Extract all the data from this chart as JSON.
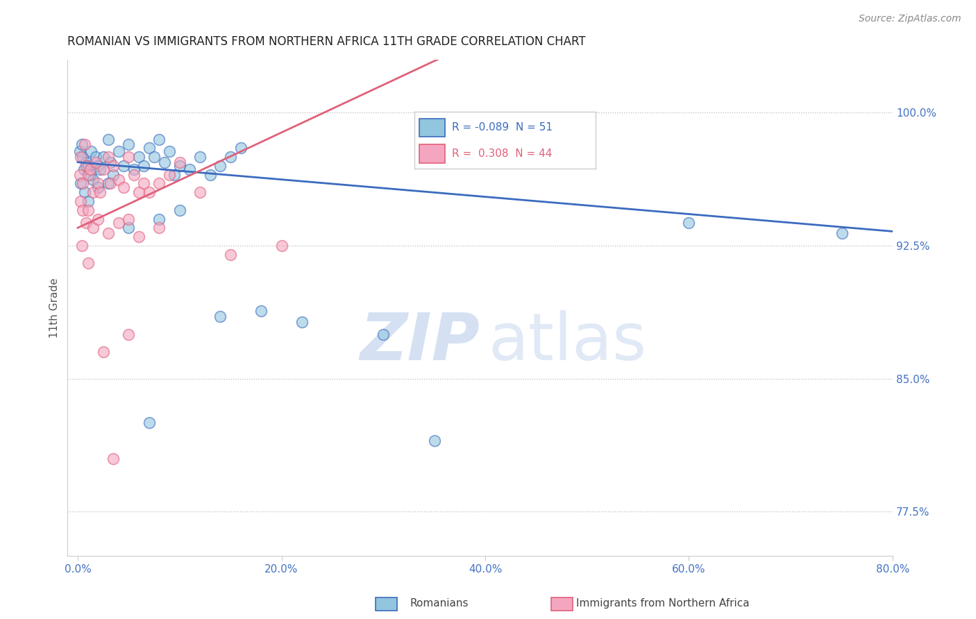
{
  "title": "ROMANIAN VS IMMIGRANTS FROM NORTHERN AFRICA 11TH GRADE CORRELATION CHART",
  "source": "Source: ZipAtlas.com",
  "xlabel_blue": "Romanians",
  "xlabel_pink": "Immigrants from Northern Africa",
  "ylabel": "11th Grade",
  "xlim": [
    -1.0,
    80.0
  ],
  "ylim": [
    75.0,
    103.0
  ],
  "yticks": [
    77.5,
    85.0,
    92.5,
    100.0
  ],
  "xticks": [
    0.0,
    20.0,
    40.0,
    60.0,
    80.0
  ],
  "blue_r": "-0.089",
  "blue_n": "51",
  "pink_r": "0.308",
  "pink_n": "44",
  "blue_color": "#92c5de",
  "pink_color": "#f4a6c0",
  "blue_line_color": "#3b6bbf",
  "pink_line_color": "#e0607a",
  "axis_label_color": "#4472c4",
  "tick_color": "#4472c4",
  "blue_points": [
    [
      0.2,
      97.8
    ],
    [
      0.4,
      98.2
    ],
    [
      0.5,
      97.5
    ],
    [
      0.6,
      96.8
    ],
    [
      0.8,
      97.2
    ],
    [
      1.0,
      97.0
    ],
    [
      1.2,
      96.5
    ],
    [
      1.3,
      97.8
    ],
    [
      1.5,
      96.2
    ],
    [
      1.8,
      97.5
    ],
    [
      2.0,
      97.0
    ],
    [
      2.2,
      96.8
    ],
    [
      2.5,
      97.5
    ],
    [
      3.0,
      98.5
    ],
    [
      3.2,
      97.2
    ],
    [
      3.5,
      96.5
    ],
    [
      4.0,
      97.8
    ],
    [
      4.5,
      97.0
    ],
    [
      5.0,
      98.2
    ],
    [
      5.5,
      96.8
    ],
    [
      6.0,
      97.5
    ],
    [
      6.5,
      97.0
    ],
    [
      7.0,
      98.0
    ],
    [
      7.5,
      97.5
    ],
    [
      8.0,
      98.5
    ],
    [
      8.5,
      97.2
    ],
    [
      9.0,
      97.8
    ],
    [
      9.5,
      96.5
    ],
    [
      10.0,
      97.0
    ],
    [
      11.0,
      96.8
    ],
    [
      12.0,
      97.5
    ],
    [
      13.0,
      96.5
    ],
    [
      14.0,
      97.0
    ],
    [
      15.0,
      97.5
    ],
    [
      16.0,
      98.0
    ],
    [
      0.3,
      96.0
    ],
    [
      0.7,
      95.5
    ],
    [
      1.0,
      95.0
    ],
    [
      2.0,
      95.8
    ],
    [
      3.0,
      96.0
    ],
    [
      5.0,
      93.5
    ],
    [
      8.0,
      94.0
    ],
    [
      10.0,
      94.5
    ],
    [
      14.0,
      88.5
    ],
    [
      18.0,
      88.8
    ],
    [
      22.0,
      88.2
    ],
    [
      30.0,
      87.5
    ],
    [
      7.0,
      82.5
    ],
    [
      35.0,
      81.5
    ],
    [
      60.0,
      93.8
    ],
    [
      75.0,
      93.2
    ]
  ],
  "pink_points": [
    [
      0.2,
      96.5
    ],
    [
      0.3,
      97.5
    ],
    [
      0.5,
      96.0
    ],
    [
      0.7,
      98.2
    ],
    [
      0.8,
      97.0
    ],
    [
      1.0,
      96.5
    ],
    [
      1.2,
      96.8
    ],
    [
      1.5,
      95.5
    ],
    [
      1.8,
      97.2
    ],
    [
      2.0,
      96.0
    ],
    [
      2.2,
      95.5
    ],
    [
      2.5,
      96.8
    ],
    [
      3.0,
      97.5
    ],
    [
      3.2,
      96.0
    ],
    [
      3.5,
      97.0
    ],
    [
      4.0,
      96.2
    ],
    [
      4.5,
      95.8
    ],
    [
      5.0,
      97.5
    ],
    [
      5.5,
      96.5
    ],
    [
      6.0,
      95.5
    ],
    [
      6.5,
      96.0
    ],
    [
      7.0,
      95.5
    ],
    [
      8.0,
      96.0
    ],
    [
      9.0,
      96.5
    ],
    [
      10.0,
      97.2
    ],
    [
      0.3,
      95.0
    ],
    [
      0.5,
      94.5
    ],
    [
      0.8,
      93.8
    ],
    [
      1.0,
      94.5
    ],
    [
      1.5,
      93.5
    ],
    [
      2.0,
      94.0
    ],
    [
      3.0,
      93.2
    ],
    [
      4.0,
      93.8
    ],
    [
      5.0,
      94.0
    ],
    [
      6.0,
      93.0
    ],
    [
      8.0,
      93.5
    ],
    [
      12.0,
      95.5
    ],
    [
      15.0,
      92.0
    ],
    [
      0.4,
      92.5
    ],
    [
      1.0,
      91.5
    ],
    [
      2.5,
      86.5
    ],
    [
      5.0,
      87.5
    ],
    [
      3.5,
      80.5
    ],
    [
      20.0,
      92.5
    ]
  ],
  "watermark_zip": "ZIP",
  "watermark_atlas": "atlas",
  "background_color": "#ffffff",
  "grid_color": "#bbbbbb"
}
